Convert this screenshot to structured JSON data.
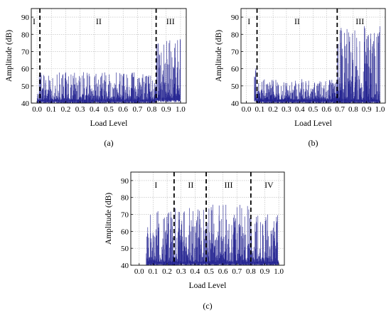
{
  "chart_data": [
    {
      "type": "line",
      "panel_label": "(a)",
      "xlabel": "Load Level",
      "ylabel": "Amplitude (dB)",
      "xlim": [
        -0.04,
        1.04
      ],
      "ylim": [
        40,
        95
      ],
      "x_ticks": [
        0.0,
        0.1,
        0.2,
        0.3,
        0.4,
        0.5,
        0.6,
        0.7,
        0.8,
        0.9,
        1.0
      ],
      "x_tick_labels": [
        "0.0",
        "0.1",
        "0.2",
        "0.3",
        "0.4",
        "0.5",
        "0.6",
        "0.7",
        "0.8",
        "0.9",
        "1.0"
      ],
      "y_ticks": [
        40,
        50,
        60,
        70,
        80,
        90
      ],
      "y_tick_labels": [
        "40",
        "50",
        "60",
        "70",
        "80",
        "90"
      ],
      "grid": true,
      "series_color": "#1a1a8c",
      "boundaries": [
        0.02,
        0.83
      ],
      "regions": [
        {
          "label": "I",
          "x": -0.02
        },
        {
          "label": "II",
          "x": 0.43
        },
        {
          "label": "III",
          "x": 0.93
        }
      ],
      "envelope": [
        {
          "start": 0.0,
          "end": 0.02,
          "base": 42,
          "peak": 60
        },
        {
          "start": 0.02,
          "end": 0.83,
          "base": 42,
          "peak": 58
        },
        {
          "start": 0.83,
          "end": 1.0,
          "base": 43,
          "peak": 78
        }
      ]
    },
    {
      "type": "line",
      "panel_label": "(b)",
      "xlabel": "Load Level",
      "ylabel": "Amplitude (dB)",
      "xlim": [
        -0.04,
        1.04
      ],
      "ylim": [
        40,
        95
      ],
      "x_ticks": [
        0.0,
        0.1,
        0.2,
        0.3,
        0.4,
        0.5,
        0.6,
        0.7,
        0.8,
        0.9,
        1.0
      ],
      "x_tick_labels": [
        "0.0",
        "0.1",
        "0.2",
        "0.3",
        "0.4",
        "0.5",
        "0.6",
        "0.7",
        "0.8",
        "0.9",
        "1.0"
      ],
      "y_ticks": [
        40,
        50,
        60,
        70,
        80,
        90
      ],
      "y_tick_labels": [
        "40",
        "50",
        "60",
        "70",
        "80",
        "90"
      ],
      "grid": true,
      "series_color": "#1a1a8c",
      "boundaries": [
        0.08,
        0.68
      ],
      "regions": [
        {
          "label": "I",
          "x": 0.02
        },
        {
          "label": "II",
          "x": 0.38
        },
        {
          "label": "III",
          "x": 0.85
        }
      ],
      "envelope": [
        {
          "start": 0.06,
          "end": 0.08,
          "base": 43,
          "peak": 62
        },
        {
          "start": 0.08,
          "end": 0.68,
          "base": 42,
          "peak": 54
        },
        {
          "start": 0.68,
          "end": 1.0,
          "base": 42,
          "peak": 85
        }
      ]
    },
    {
      "type": "line",
      "panel_label": "(c)",
      "xlabel": "Load Level",
      "ylabel": "Amplitude (dB)",
      "xlim": [
        -0.06,
        1.04
      ],
      "ylim": [
        40,
        95
      ],
      "x_ticks": [
        0.0,
        0.1,
        0.2,
        0.3,
        0.4,
        0.5,
        0.6,
        0.7,
        0.8,
        0.9,
        1.0
      ],
      "x_tick_labels": [
        "0.0",
        "0.1",
        "0.2",
        "0.3",
        "0.4",
        "0.5",
        "0.6",
        "0.7",
        "0.8",
        "0.9",
        "1.0"
      ],
      "y_ticks": [
        40,
        50,
        60,
        70,
        80,
        90
      ],
      "y_tick_labels": [
        "40",
        "50",
        "60",
        "70",
        "80",
        "90"
      ],
      "grid": true,
      "series_color": "#1a1a8c",
      "boundaries": [
        0.25,
        0.48,
        0.8
      ],
      "regions": [
        {
          "label": "I",
          "x": 0.12
        },
        {
          "label": "II",
          "x": 0.37
        },
        {
          "label": "III",
          "x": 0.64
        },
        {
          "label": "IV",
          "x": 0.93
        }
      ],
      "envelope": [
        {
          "start": 0.05,
          "end": 0.25,
          "base": 42,
          "peak": 72
        },
        {
          "start": 0.25,
          "end": 0.48,
          "base": 42,
          "peak": 74
        },
        {
          "start": 0.48,
          "end": 0.8,
          "base": 42,
          "peak": 76
        },
        {
          "start": 0.8,
          "end": 1.0,
          "base": 42,
          "peak": 70
        }
      ]
    }
  ]
}
